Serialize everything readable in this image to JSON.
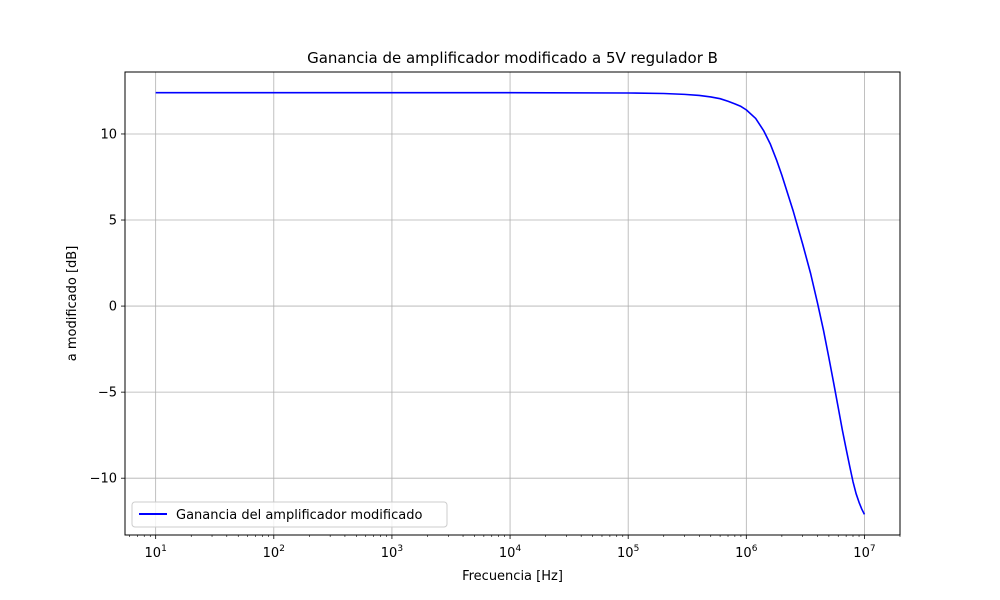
{
  "chart_data": {
    "type": "line",
    "title": "Ganancia de amplificador modificado a 5V regulador B",
    "xlabel": "Frecuencia [Hz]",
    "ylabel": "a modificado [dB]",
    "xscale": "log",
    "xlim": [
      5.5,
      20000000
    ],
    "ylim": [
      -13.3,
      13.6
    ],
    "grid": true,
    "legend_position": "lower-left",
    "x_ticks": [
      {
        "value": 10,
        "base": "10",
        "exp": "1"
      },
      {
        "value": 100,
        "base": "10",
        "exp": "2"
      },
      {
        "value": 1000,
        "base": "10",
        "exp": "3"
      },
      {
        "value": 10000,
        "base": "10",
        "exp": "4"
      },
      {
        "value": 100000,
        "base": "10",
        "exp": "5"
      },
      {
        "value": 1000000,
        "base": "10",
        "exp": "6"
      },
      {
        "value": 10000000,
        "base": "10",
        "exp": "7"
      }
    ],
    "y_ticks": [
      {
        "value": 10,
        "label": "10"
      },
      {
        "value": 5,
        "label": "5"
      },
      {
        "value": 0,
        "label": "0"
      },
      {
        "value": -5,
        "label": "−5"
      },
      {
        "value": -10,
        "label": "−10"
      }
    ],
    "series": [
      {
        "name": "Ganancia del amplificador modificado",
        "color": "#0000ff",
        "x": [
          10,
          100,
          1000,
          10000,
          100000,
          200000,
          300000,
          400000,
          500000,
          600000,
          700000,
          800000,
          900000,
          1000000,
          1200000,
          1400000,
          1600000,
          1800000,
          2000000,
          2500000,
          3000000,
          3500000,
          4000000,
          4500000,
          5000000,
          5500000,
          6000000,
          6500000,
          7000000,
          7500000,
          8000000,
          8500000,
          9000000,
          9500000,
          10000000
        ],
        "y": [
          12.4,
          12.4,
          12.4,
          12.4,
          12.38,
          12.35,
          12.3,
          12.24,
          12.15,
          12.05,
          11.9,
          11.75,
          11.6,
          11.4,
          10.9,
          10.2,
          9.4,
          8.5,
          7.6,
          5.5,
          3.6,
          1.9,
          0.2,
          -1.4,
          -3.0,
          -4.5,
          -5.9,
          -7.2,
          -8.3,
          -9.3,
          -10.2,
          -10.9,
          -11.4,
          -11.8,
          -12.1
        ]
      }
    ]
  }
}
